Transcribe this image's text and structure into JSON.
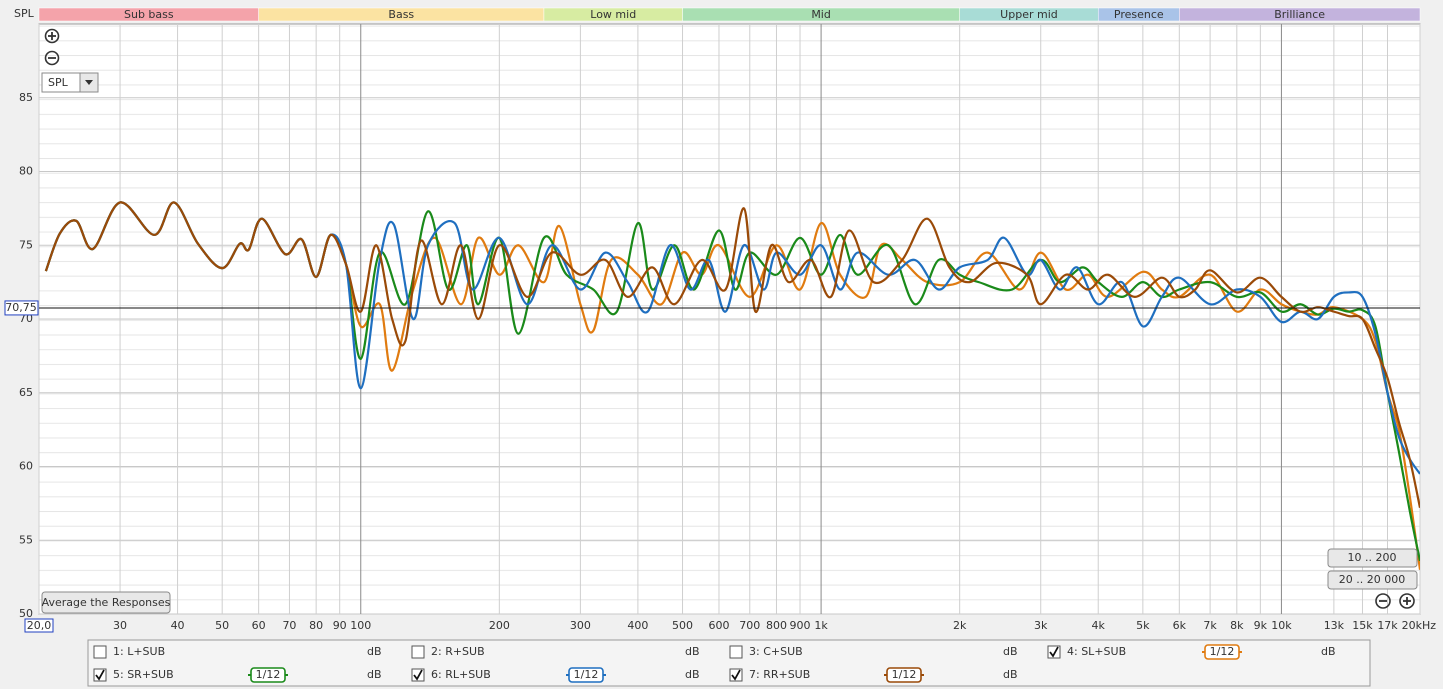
{
  "chart_data": {
    "type": "line",
    "y_label": "SPL",
    "xscale": "log",
    "xlim": [
      20,
      20000
    ],
    "ylim": [
      50,
      90
    ],
    "grid": true,
    "bands": [
      {
        "name": "Sub bass",
        "from": 20,
        "to": 60,
        "color": "#f4a3aa"
      },
      {
        "name": "Bass",
        "from": 60,
        "to": 250,
        "color": "#fbe3a2"
      },
      {
        "name": "Low mid",
        "from": 250,
        "to": 500,
        "color": "#d7eca2"
      },
      {
        "name": "Mid",
        "from": 500,
        "to": 2000,
        "color": "#a9dfb2"
      },
      {
        "name": "Upper mid",
        "from": 2000,
        "to": 4000,
        "color": "#a8dcd6"
      },
      {
        "name": "Presence",
        "from": 4000,
        "to": 6000,
        "color": "#a9c3e8"
      },
      {
        "name": "Brilliance",
        "from": 6000,
        "to": 20000,
        "color": "#c3b3dd"
      }
    ],
    "xticks": [
      {
        "value": 20,
        "label": "20,0"
      },
      30,
      40,
      50,
      60,
      70,
      80,
      90,
      100,
      200,
      300,
      400,
      500,
      600,
      700,
      800,
      900,
      {
        "value": 1000,
        "label": "1k"
      },
      {
        "value": 2000,
        "label": "2k"
      },
      {
        "value": 3000,
        "label": "3k"
      },
      {
        "value": 4000,
        "label": "4k"
      },
      {
        "value": 5000,
        "label": "5k"
      },
      {
        "value": 6000,
        "label": "6k"
      },
      {
        "value": 7000,
        "label": "7k"
      },
      {
        "value": 8000,
        "label": "8k"
      },
      {
        "value": 9000,
        "label": "9k"
      },
      {
        "value": 10000,
        "label": "10k"
      },
      {
        "value": 13000,
        "label": "13k",
        "muted": true
      },
      {
        "value": 15000,
        "label": "15k"
      },
      {
        "value": 17000,
        "label": "17k"
      },
      {
        "value": 20000,
        "label": "20kHz"
      }
    ],
    "yticks": [
      50,
      55,
      60,
      65,
      70,
      75,
      80,
      85
    ],
    "cursor": {
      "value": 70.75,
      "label": "70,75"
    },
    "series": [
      {
        "name": "1: L+SUB",
        "color": "#c0302a",
        "checked": false,
        "unit": "dB"
      },
      {
        "name": "2: R+SUB",
        "color": "#2a8a2a",
        "checked": false,
        "unit": "dB"
      },
      {
        "name": "3: C+SUB",
        "color": "#3060c0",
        "checked": false,
        "unit": "dB"
      },
      {
        "name": "4: SL+SUB",
        "color": "#e07b10",
        "checked": true,
        "smoothing": "1/12",
        "unit": "dB",
        "x": [
          20.7,
          22.2,
          24.1,
          26.2,
          30,
          35.6,
          39.3,
          44.3,
          50,
          54.6,
          57.1,
          61,
          68.5,
          74.4,
          80,
          86,
          92.9,
          100,
          110,
          117,
          130,
          145,
          165,
          180,
          200,
          220,
          250,
          270,
          300,
          320,
          350,
          400,
          450,
          500,
          550,
          600,
          700,
          800,
          900,
          1000,
          1100,
          1250,
          1350,
          1500,
          1700,
          2000,
          2300,
          2700,
          3000,
          3400,
          3800,
          4200,
          5000,
          5500,
          6000,
          7000,
          8000,
          9000,
          10000,
          11000,
          12000,
          13000,
          15000,
          16000,
          17000,
          18000,
          19000,
          20000
        ],
        "values": [
          73.25,
          75.8,
          76.65,
          74.75,
          77.9,
          75.7,
          77.9,
          75.1,
          73.45,
          75.1,
          74.7,
          76.8,
          74.4,
          75.4,
          72.85,
          75.7,
          73.7,
          69.5,
          71,
          66.5,
          72,
          75.5,
          71,
          75.5,
          73,
          75,
          72.5,
          76.3,
          71,
          69.2,
          74,
          73,
          71,
          74.5,
          73,
          75,
          71.5,
          75,
          72,
          76.5,
          73,
          71.5,
          75,
          74,
          72.5,
          72.5,
          74.5,
          72,
          74.5,
          72,
          73,
          71.5,
          73.2,
          72,
          71.5,
          73,
          70.5,
          72,
          71,
          70.5,
          70.3,
          70.8,
          70,
          68.5,
          65,
          62.5,
          58,
          53
        ]
      },
      {
        "name": "5: SR+SUB",
        "color": "#1a8a1a",
        "checked": true,
        "smoothing": "1/12",
        "unit": "dB",
        "x": [
          20.7,
          22.2,
          24.1,
          26.2,
          30,
          35.6,
          39.3,
          44.3,
          50,
          54.6,
          57.1,
          61,
          68.5,
          74.4,
          80,
          86,
          92.9,
          100,
          110,
          125,
          140,
          155,
          170,
          180,
          200,
          220,
          250,
          280,
          320,
          360,
          400,
          430,
          480,
          530,
          600,
          650,
          700,
          800,
          900,
          1000,
          1100,
          1200,
          1400,
          1600,
          1800,
          2000,
          2200,
          2600,
          3000,
          3300,
          3700,
          4000,
          4500,
          5000,
          5500,
          6000,
          7000,
          8000,
          9000,
          10000,
          11000,
          12000,
          13000,
          14000,
          15000,
          16000,
          17000,
          18000,
          19000,
          20000
        ],
        "values": [
          73.25,
          75.8,
          76.65,
          74.75,
          77.9,
          75.7,
          77.9,
          75.1,
          73.45,
          75.1,
          74.7,
          76.8,
          74.4,
          75.4,
          72.85,
          75.7,
          73.7,
          67.3,
          74.5,
          71,
          77.3,
          72,
          75,
          71,
          75.5,
          69,
          75.5,
          73,
          72,
          70.5,
          76.5,
          72,
          75,
          72,
          76,
          72,
          74.5,
          73,
          75.5,
          73,
          75.7,
          73,
          75,
          71,
          74,
          73,
          72.5,
          72,
          74,
          72.5,
          73.5,
          72.5,
          71.5,
          72.5,
          71.5,
          72,
          72.5,
          71.5,
          71.8,
          70.5,
          71,
          70.3,
          70.7,
          70.5,
          70.6,
          69.5,
          65,
          61,
          57,
          53.6
        ]
      },
      {
        "name": "6: RL+SUB",
        "color": "#1f6fc0",
        "checked": true,
        "smoothing": "1/12",
        "unit": "dB",
        "x": [
          20.7,
          22.2,
          24.1,
          26.2,
          30,
          35.6,
          39.3,
          44.3,
          50,
          54.6,
          57.1,
          61,
          68.5,
          74.4,
          80,
          86,
          92.9,
          100,
          110,
          118,
          130,
          140,
          160,
          175,
          200,
          230,
          260,
          300,
          340,
          380,
          420,
          470,
          520,
          570,
          620,
          680,
          750,
          800,
          900,
          1000,
          1100,
          1200,
          1400,
          1600,
          1800,
          2000,
          2300,
          2500,
          2800,
          3000,
          3300,
          3600,
          4000,
          4500,
          5000,
          5500,
          6000,
          7000,
          8000,
          9000,
          10000,
          11000,
          12000,
          13000,
          14000,
          15000,
          16000,
          17000,
          18000,
          19000,
          20000
        ],
        "values": [
          73.25,
          75.8,
          76.65,
          74.75,
          77.9,
          75.7,
          77.9,
          75.1,
          73.45,
          75.1,
          74.7,
          76.8,
          74.4,
          75.4,
          72.85,
          75.7,
          73.7,
          65.3,
          74,
          76.4,
          70,
          75,
          76.5,
          72,
          75.5,
          71,
          75,
          72,
          74.5,
          72.5,
          70.5,
          75,
          72,
          74,
          70.5,
          75,
          72,
          74.5,
          73,
          75,
          72,
          74.5,
          73,
          74,
          72,
          73.5,
          74,
          75.5,
          73,
          74,
          72,
          73.5,
          71,
          72.5,
          69.5,
          71.5,
          72.8,
          71,
          72,
          71.5,
          69.8,
          70.5,
          70,
          71.5,
          71.8,
          71.5,
          69,
          65,
          62,
          60.5,
          59.5
        ]
      },
      {
        "name": "7: RR+SUB",
        "color": "#9a4a08",
        "checked": true,
        "smoothing": "1/12",
        "unit": "dB",
        "x": [
          20.7,
          22.2,
          24.1,
          26.2,
          30,
          35.6,
          39.3,
          44.3,
          50,
          54.6,
          57.1,
          61,
          68.5,
          74.4,
          80,
          86,
          92.9,
          100,
          108,
          117,
          125,
          135,
          150,
          165,
          180,
          200,
          230,
          260,
          300,
          340,
          380,
          430,
          480,
          550,
          620,
          680,
          720,
          780,
          850,
          950,
          1050,
          1150,
          1300,
          1500,
          1700,
          1900,
          2100,
          2400,
          2800,
          3000,
          3400,
          3800,
          4200,
          4800,
          5500,
          6000,
          6500,
          7000,
          8000,
          9000,
          10000,
          11000,
          12000,
          13000,
          14000,
          15000,
          16000,
          17000,
          18000,
          19000,
          20000
        ],
        "values": [
          73.25,
          75.8,
          76.65,
          74.75,
          77.9,
          75.7,
          77.9,
          75.1,
          73.45,
          75.1,
          74.7,
          76.8,
          74.4,
          75.4,
          72.85,
          75.7,
          73.7,
          70.5,
          75,
          70,
          68.5,
          75.3,
          71,
          75,
          70,
          75,
          71.5,
          74.5,
          73,
          74,
          71.5,
          73.5,
          71,
          74,
          72,
          77.5,
          70.5,
          75,
          72.5,
          74,
          71.5,
          76,
          72.5,
          74,
          76.8,
          73.5,
          72.5,
          73.8,
          73,
          71,
          73,
          72,
          73,
          71.5,
          72.8,
          71.5,
          72,
          73.3,
          71.8,
          72.8,
          71.5,
          70.5,
          70.8,
          70.5,
          70.2,
          70,
          68,
          66,
          63,
          60.5,
          57.2
        ]
      }
    ]
  },
  "controls": {
    "measure_select": "SPL",
    "average_button": "Average the Responses",
    "range_buttons": [
      "10 .. 200",
      "20 .. 20 000"
    ]
  }
}
